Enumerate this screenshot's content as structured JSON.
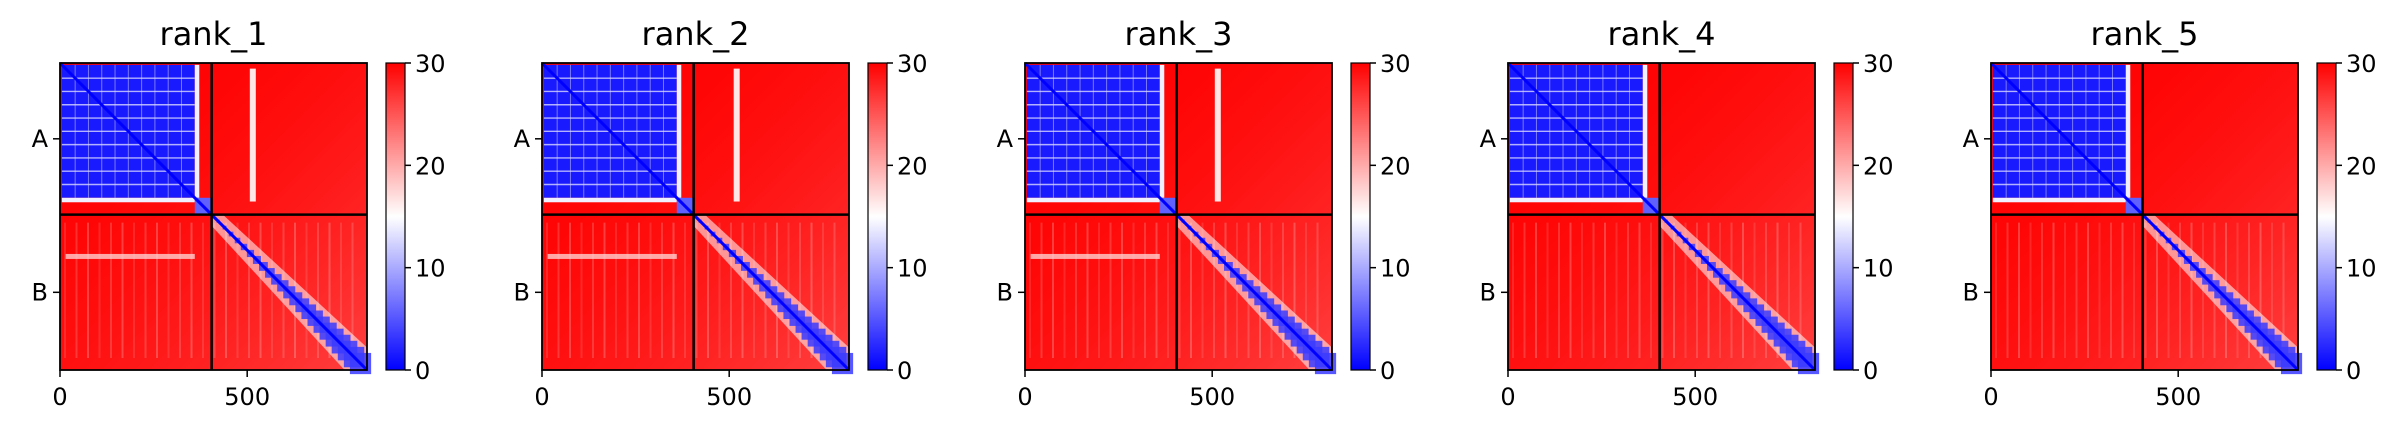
{
  "chart_data": {
    "type": "heatmap",
    "chains": [
      "A",
      "B"
    ],
    "sequence_length": 820,
    "chain_boundary": 405,
    "colormap": "bwr",
    "color_range": [
      0,
      30
    ],
    "colorbar_ticks": [
      0,
      10,
      20,
      30
    ],
    "x_ticks": [
      0,
      500
    ],
    "panels": [
      {
        "title": "rank_1",
        "stripe_x": 515
      },
      {
        "title": "rank_2",
        "stripe_x": 520
      },
      {
        "title": "rank_3",
        "stripe_x": 515
      },
      {
        "title": "rank_4",
        "stripe_x": null
      },
      {
        "title": "rank_5",
        "stripe_x": null
      }
    ]
  },
  "colors": {
    "low": "#0000ff",
    "mid": "#ffffff",
    "high": "#ff0000",
    "frame": "#000000"
  }
}
